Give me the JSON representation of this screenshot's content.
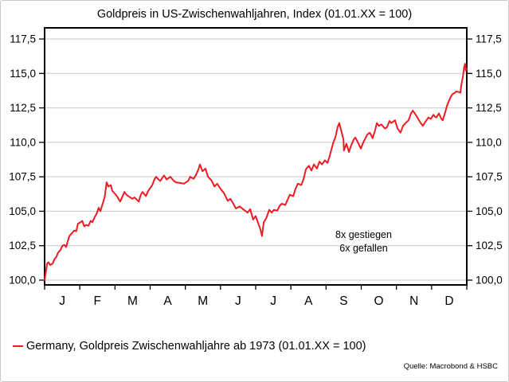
{
  "chart_data": {
    "type": "line",
    "title": "Goldpreis in US-Zwischenwahljahren, Index (01.01.XX = 100)",
    "grid": true,
    "x_axis": {
      "categories": [
        "J",
        "F",
        "M",
        "A",
        "M",
        "J",
        "J",
        "A",
        "S",
        "O",
        "N",
        "D"
      ]
    },
    "y_axis": {
      "ticks": [
        100,
        102.5,
        105,
        107.5,
        110,
        112.5,
        115,
        117.5
      ],
      "tick_labels": [
        "100,0",
        "102,5",
        "105,0",
        "107,5",
        "110,0",
        "112,5",
        "115,0",
        "117,5"
      ],
      "range": [
        100,
        117.5
      ],
      "sides": "both"
    },
    "annotations": [
      "8x gestiegen",
      "6x gefallen"
    ],
    "series": [
      {
        "name": "Germany, Goldpreis Zwischenwahljahre ab 1973 (01.01.XX = 100)",
        "color": "#ed1c24",
        "points": [
          [
            0.0,
            100.0
          ],
          [
            0.004,
            100.8
          ],
          [
            0.006,
            101.2
          ],
          [
            0.009,
            101.3
          ],
          [
            0.013,
            101.1
          ],
          [
            0.019,
            101.2
          ],
          [
            0.023,
            101.5
          ],
          [
            0.028,
            101.7
          ],
          [
            0.032,
            102.0
          ],
          [
            0.038,
            102.2
          ],
          [
            0.042,
            102.5
          ],
          [
            0.047,
            102.55
          ],
          [
            0.051,
            102.4
          ],
          [
            0.057,
            103.05
          ],
          [
            0.06,
            103.25
          ],
          [
            0.066,
            103.45
          ],
          [
            0.07,
            103.6
          ],
          [
            0.075,
            103.55
          ],
          [
            0.079,
            104.1
          ],
          [
            0.085,
            104.2
          ],
          [
            0.089,
            104.3
          ],
          [
            0.094,
            103.9
          ],
          [
            0.098,
            104.0
          ],
          [
            0.104,
            103.95
          ],
          [
            0.109,
            104.3
          ],
          [
            0.113,
            104.2
          ],
          [
            0.119,
            104.6
          ],
          [
            0.123,
            104.8
          ],
          [
            0.128,
            105.25
          ],
          [
            0.132,
            105.0
          ],
          [
            0.142,
            106.0
          ],
          [
            0.147,
            107.1
          ],
          [
            0.151,
            106.8
          ],
          [
            0.157,
            106.9
          ],
          [
            0.16,
            106.5
          ],
          [
            0.17,
            106.15
          ],
          [
            0.175,
            105.9
          ],
          [
            0.179,
            105.7
          ],
          [
            0.189,
            106.4
          ],
          [
            0.194,
            106.2
          ],
          [
            0.198,
            106.1
          ],
          [
            0.208,
            105.9
          ],
          [
            0.213,
            106.0
          ],
          [
            0.223,
            105.7
          ],
          [
            0.228,
            106.2
          ],
          [
            0.232,
            106.4
          ],
          [
            0.24,
            106.1
          ],
          [
            0.245,
            106.45
          ],
          [
            0.255,
            106.9
          ],
          [
            0.26,
            107.3
          ],
          [
            0.264,
            107.5
          ],
          [
            0.27,
            107.3
          ],
          [
            0.274,
            107.2
          ],
          [
            0.283,
            107.6
          ],
          [
            0.289,
            107.3
          ],
          [
            0.298,
            107.5
          ],
          [
            0.306,
            107.2
          ],
          [
            0.311,
            107.1
          ],
          [
            0.321,
            107.05
          ],
          [
            0.33,
            107.0
          ],
          [
            0.34,
            107.2
          ],
          [
            0.345,
            107.5
          ],
          [
            0.353,
            107.35
          ],
          [
            0.358,
            107.6
          ],
          [
            0.364,
            108.0
          ],
          [
            0.368,
            108.4
          ],
          [
            0.374,
            107.9
          ],
          [
            0.381,
            108.1
          ],
          [
            0.387,
            107.5
          ],
          [
            0.396,
            107.2
          ],
          [
            0.402,
            106.8
          ],
          [
            0.409,
            107.0
          ],
          [
            0.415,
            106.7
          ],
          [
            0.425,
            106.3
          ],
          [
            0.434,
            105.75
          ],
          [
            0.44,
            105.9
          ],
          [
            0.447,
            105.55
          ],
          [
            0.453,
            105.2
          ],
          [
            0.462,
            105.35
          ],
          [
            0.472,
            105.1
          ],
          [
            0.481,
            104.9
          ],
          [
            0.487,
            105.15
          ],
          [
            0.494,
            104.4
          ],
          [
            0.5,
            104.65
          ],
          [
            0.504,
            104.3
          ],
          [
            0.511,
            103.7
          ],
          [
            0.515,
            103.2
          ],
          [
            0.519,
            104.2
          ],
          [
            0.525,
            104.5
          ],
          [
            0.532,
            105.1
          ],
          [
            0.538,
            104.9
          ],
          [
            0.543,
            105.1
          ],
          [
            0.551,
            105.05
          ],
          [
            0.557,
            105.4
          ],
          [
            0.562,
            105.55
          ],
          [
            0.57,
            105.45
          ],
          [
            0.575,
            105.8
          ],
          [
            0.581,
            106.2
          ],
          [
            0.589,
            106.1
          ],
          [
            0.594,
            106.6
          ],
          [
            0.6,
            107.0
          ],
          [
            0.608,
            106.9
          ],
          [
            0.613,
            107.3
          ],
          [
            0.619,
            108.05
          ],
          [
            0.626,
            108.3
          ],
          [
            0.632,
            107.95
          ],
          [
            0.638,
            108.4
          ],
          [
            0.645,
            108.1
          ],
          [
            0.651,
            108.6
          ],
          [
            0.657,
            108.4
          ],
          [
            0.664,
            108.7
          ],
          [
            0.67,
            108.5
          ],
          [
            0.675,
            109.0
          ],
          [
            0.683,
            109.9
          ],
          [
            0.689,
            110.4
          ],
          [
            0.694,
            111.1
          ],
          [
            0.698,
            111.4
          ],
          [
            0.702,
            110.9
          ],
          [
            0.708,
            110.2
          ],
          [
            0.709,
            109.4
          ],
          [
            0.715,
            109.9
          ],
          [
            0.721,
            109.3
          ],
          [
            0.725,
            109.7
          ],
          [
            0.732,
            110.2
          ],
          [
            0.736,
            110.35
          ],
          [
            0.742,
            110.0
          ],
          [
            0.749,
            109.55
          ],
          [
            0.755,
            110.0
          ],
          [
            0.764,
            110.55
          ],
          [
            0.77,
            110.7
          ],
          [
            0.774,
            110.5
          ],
          [
            0.777,
            110.3
          ],
          [
            0.783,
            110.9
          ],
          [
            0.787,
            111.4
          ],
          [
            0.792,
            111.2
          ],
          [
            0.798,
            111.3
          ],
          [
            0.806,
            111.0
          ],
          [
            0.811,
            111.1
          ],
          [
            0.817,
            111.55
          ],
          [
            0.821,
            111.4
          ],
          [
            0.83,
            111.6
          ],
          [
            0.836,
            111.0
          ],
          [
            0.843,
            110.7
          ],
          [
            0.849,
            111.2
          ],
          [
            0.855,
            111.4
          ],
          [
            0.862,
            111.6
          ],
          [
            0.868,
            112.1
          ],
          [
            0.872,
            112.3
          ],
          [
            0.877,
            112.1
          ],
          [
            0.883,
            111.8
          ],
          [
            0.891,
            111.4
          ],
          [
            0.896,
            111.2
          ],
          [
            0.902,
            111.5
          ],
          [
            0.909,
            111.8
          ],
          [
            0.915,
            111.7
          ],
          [
            0.921,
            112.0
          ],
          [
            0.925,
            111.85
          ],
          [
            0.928,
            111.8
          ],
          [
            0.934,
            112.1
          ],
          [
            0.94,
            111.7
          ],
          [
            0.943,
            111.6
          ],
          [
            0.949,
            112.2
          ],
          [
            0.953,
            112.65
          ],
          [
            0.957,
            112.95
          ],
          [
            0.962,
            113.3
          ],
          [
            0.966,
            113.5
          ],
          [
            0.972,
            113.6
          ],
          [
            0.975,
            113.7
          ],
          [
            0.981,
            113.65
          ],
          [
            0.985,
            113.6
          ],
          [
            0.987,
            114.15
          ],
          [
            0.991,
            114.8
          ],
          [
            0.994,
            115.5
          ],
          [
            0.996,
            115.7
          ],
          [
            0.998,
            115.2
          ],
          [
            1.0,
            115.35
          ]
        ]
      }
    ]
  },
  "legend": {
    "label": "Germany, Goldpreis Zwischenwahljahre ab 1973 (01.01.XX = 100)",
    "color": "#ed1c24"
  },
  "source": "Quelle: Macrobond & HSBC"
}
